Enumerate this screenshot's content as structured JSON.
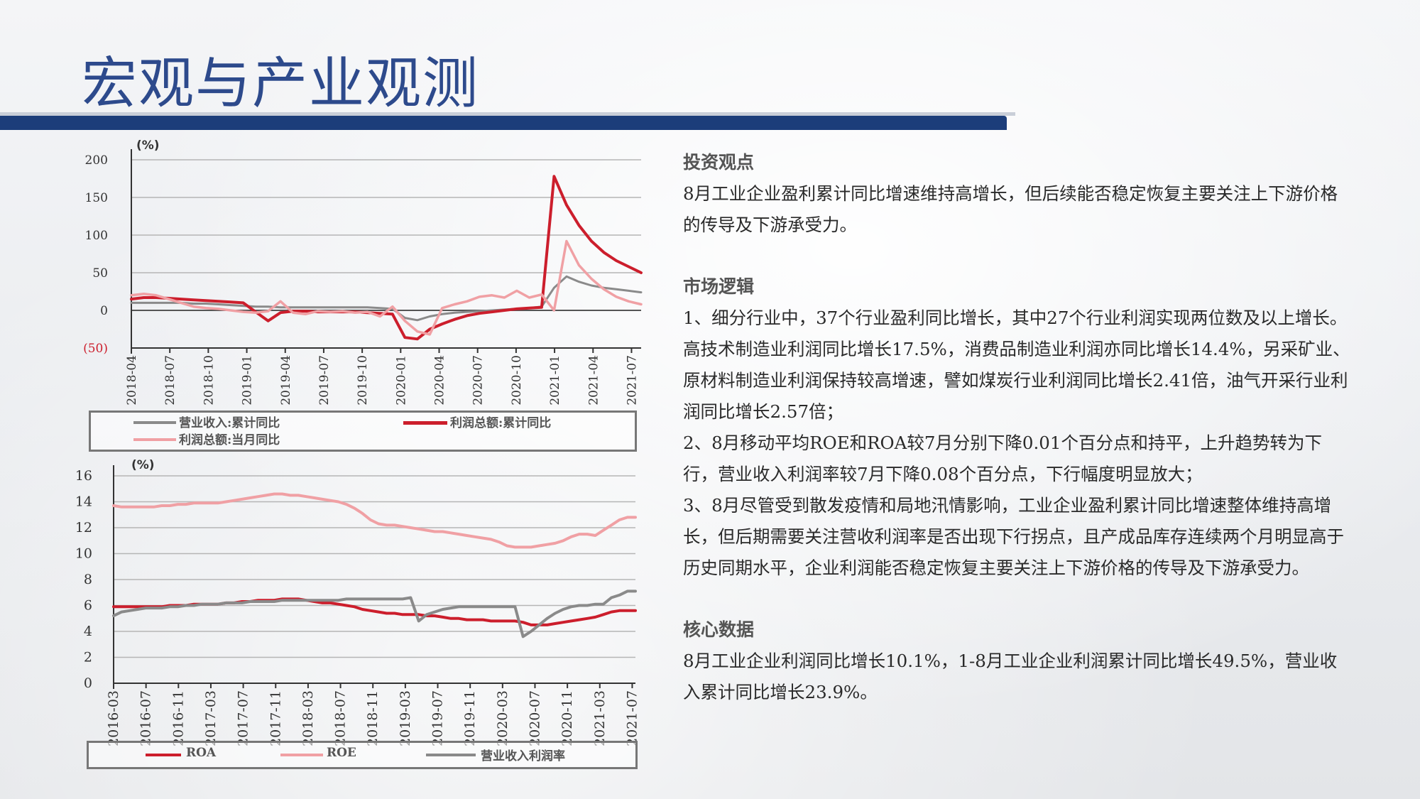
{
  "page_title": "宏观与产业观测",
  "right_panel": {
    "s1_head": "投资观点",
    "s1_p1": "8月工业企业盈利累计同比增速维持高增长，但后续能否稳定恢复主要关注上下游价格的传导及下游承受力。",
    "s2_head": "市场逻辑",
    "s2_p1": "1、细分行业中，37个行业盈利同比增长，其中27个行业利润实现两位数及以上增长。高技术制造业利润同比增长17.5%，消费品制造业利润亦同比增长14.4%，另采矿业、原材料制造业利润保持较高增速，譬如煤炭行业利润同比增长2.41倍，油气开采行业利润同比增长2.57倍；",
    "s2_p2": "2、8月移动平均ROE和ROA较7月分别下降0.01个百分点和持平，上升趋势转为下行，营业收入利润率较7月下降0.08个百分点，下行幅度明显放大；",
    "s2_p3": "3、8月尽管受到散发疫情和局地汛情影响，工业企业盈利累计同比增速整体维持高增长，但后期需要关注营收利润率是否出现下行拐点，且产成品库存连续两个月明显高于历史同期水平，企业利润能否稳定恢复主要关注上下游价格的传导及下游承受力。",
    "s3_head": "核心数据",
    "s3_p1": "8月工业企业利润同比增长10.1%，1-8月工业企业利润累计同比增长49.5%，营业收入累计同比增长23.9%。"
  },
  "colors": {
    "title": "#2d4a8c",
    "bar": "#1c3d7a",
    "dark_red": "#cc1e2c",
    "light_red": "#f0a0a4",
    "gray": "#8a8a8a"
  },
  "chart_data": [
    {
      "type": "line",
      "unit_label": "(%)",
      "ylim": [
        -50,
        200
      ],
      "yticks": [
        "200",
        "150",
        "100",
        "50",
        "0",
        "(50)"
      ],
      "ytick_values": [
        200,
        150,
        100,
        50,
        0,
        -50
      ],
      "xtick_labels": [
        "2018-04",
        "2018-07",
        "2018-10",
        "2019-01",
        "2019-04",
        "2019-07",
        "2019-10",
        "2020-01",
        "2020-04",
        "2020-07",
        "2020-10",
        "2021-01",
        "2021-04",
        "2021-07"
      ],
      "x_count": 42,
      "legend": [
        {
          "name": "营业收入:累计同比",
          "color": "#8a8a8a"
        },
        {
          "name": "利润总额:累计同比",
          "color": "#cc1e2c"
        },
        {
          "name": "利润总额:当月同比",
          "color": "#f0a0a4"
        }
      ],
      "series": [
        {
          "name": "营业收入:累计同比",
          "color": "#8a8a8a",
          "width": 3,
          "values": [
            10,
            10,
            10,
            10,
            10,
            9,
            9,
            8,
            7,
            6,
            5,
            5,
            4,
            4,
            4,
            4,
            4,
            4,
            4,
            4,
            3,
            2,
            -10,
            -13,
            -8,
            -5,
            -3,
            -2,
            -1,
            0,
            1,
            2,
            3,
            5,
            30,
            45,
            38,
            33,
            30,
            28,
            26,
            24
          ]
        },
        {
          "name": "利润总额:累计同比",
          "color": "#cc1e2c",
          "width": 4,
          "values": [
            15,
            17,
            17,
            16,
            15,
            14,
            13,
            12,
            11,
            10,
            -2,
            -14,
            -3,
            -1,
            -1,
            -2,
            -2,
            -2,
            -2,
            -3,
            -4,
            -5,
            -36,
            -38,
            -25,
            -18,
            -12,
            -7,
            -4,
            -2,
            0,
            2,
            3,
            4,
            178,
            140,
            113,
            92,
            77,
            66,
            58,
            50
          ]
        },
        {
          "name": "利润总额:当月同比",
          "color": "#f0a0a4",
          "width": 3.5,
          "values": [
            20,
            22,
            20,
            15,
            10,
            5,
            3,
            2,
            0,
            -2,
            -3,
            -1,
            12,
            -3,
            -5,
            -1,
            -2,
            -1,
            -3,
            -2,
            -8,
            5,
            -14,
            -28,
            -32,
            3,
            8,
            12,
            18,
            20,
            17,
            26,
            17,
            21,
            0,
            92,
            60,
            42,
            28,
            18,
            12,
            8
          ]
        }
      ]
    },
    {
      "type": "line",
      "unit_label": "(%)",
      "ylim": [
        0,
        16
      ],
      "yticks": [
        "16",
        "14",
        "12",
        "10",
        "8",
        "6",
        "4",
        "2",
        "0"
      ],
      "ytick_values": [
        16,
        14,
        12,
        10,
        8,
        6,
        4,
        2,
        0
      ],
      "xtick_labels": [
        "2016-03",
        "2016-07",
        "2016-11",
        "2017-03",
        "2017-07",
        "2017-11",
        "2018-03",
        "2018-07",
        "2018-11",
        "2019-03",
        "2019-07",
        "2019-11",
        "2020-03",
        "2020-07",
        "2020-11",
        "2021-03",
        "2021-07"
      ],
      "x_count": 66,
      "legend": [
        {
          "name": "ROA",
          "color": "#cc1e2c"
        },
        {
          "name": "ROE",
          "color": "#f0a0a4"
        },
        {
          "name": "营业收入利润率",
          "color": "#8a8a8a"
        }
      ],
      "series": [
        {
          "name": "ROA",
          "color": "#cc1e2c",
          "width": 4,
          "values": [
            5.9,
            5.9,
            5.9,
            5.9,
            5.9,
            5.9,
            5.9,
            6.0,
            6.0,
            6.0,
            6.1,
            6.1,
            6.1,
            6.1,
            6.2,
            6.2,
            6.3,
            6.3,
            6.4,
            6.4,
            6.4,
            6.5,
            6.5,
            6.5,
            6.4,
            6.3,
            6.2,
            6.2,
            6.1,
            6.0,
            5.9,
            5.7,
            5.6,
            5.5,
            5.4,
            5.4,
            5.3,
            5.3,
            5.3,
            5.2,
            5.2,
            5.1,
            5.0,
            5.0,
            4.9,
            4.9,
            4.9,
            4.8,
            4.8,
            4.8,
            4.8,
            4.7,
            4.5,
            4.5,
            4.5,
            4.6,
            4.7,
            4.8,
            4.9,
            5.0,
            5.1,
            5.3,
            5.5,
            5.6,
            5.6,
            5.6
          ]
        },
        {
          "name": "ROE",
          "color": "#f0a0a4",
          "width": 4,
          "values": [
            13.7,
            13.6,
            13.6,
            13.6,
            13.6,
            13.6,
            13.7,
            13.7,
            13.8,
            13.8,
            13.9,
            13.9,
            13.9,
            13.9,
            14.0,
            14.1,
            14.2,
            14.3,
            14.4,
            14.5,
            14.6,
            14.6,
            14.5,
            14.5,
            14.4,
            14.3,
            14.2,
            14.1,
            14.0,
            13.8,
            13.5,
            13.1,
            12.6,
            12.3,
            12.2,
            12.2,
            12.1,
            12.0,
            11.9,
            11.8,
            11.7,
            11.7,
            11.6,
            11.5,
            11.4,
            11.3,
            11.2,
            11.1,
            10.9,
            10.6,
            10.5,
            10.5,
            10.5,
            10.6,
            10.7,
            10.8,
            11.0,
            11.3,
            11.5,
            11.5,
            11.4,
            11.8,
            12.2,
            12.6,
            12.8,
            12.8
          ]
        },
        {
          "name": "营业收入利润率",
          "color": "#8a8a8a",
          "width": 4,
          "values": [
            5.2,
            5.5,
            5.6,
            5.7,
            5.8,
            5.8,
            5.8,
            5.9,
            5.9,
            6.0,
            6.0,
            6.1,
            6.1,
            6.1,
            6.2,
            6.2,
            6.2,
            6.3,
            6.3,
            6.3,
            6.3,
            6.4,
            6.4,
            6.4,
            6.4,
            6.4,
            6.4,
            6.4,
            6.4,
            6.5,
            6.5,
            6.5,
            6.5,
            6.5,
            6.5,
            6.5,
            6.5,
            6.6,
            4.8,
            5.3,
            5.5,
            5.7,
            5.8,
            5.9,
            5.9,
            5.9,
            5.9,
            5.9,
            5.9,
            5.9,
            5.9,
            3.6,
            4.0,
            4.5,
            5.0,
            5.4,
            5.7,
            5.9,
            6.0,
            6.0,
            6.1,
            6.1,
            6.6,
            6.8,
            7.1,
            7.1
          ]
        }
      ]
    }
  ]
}
